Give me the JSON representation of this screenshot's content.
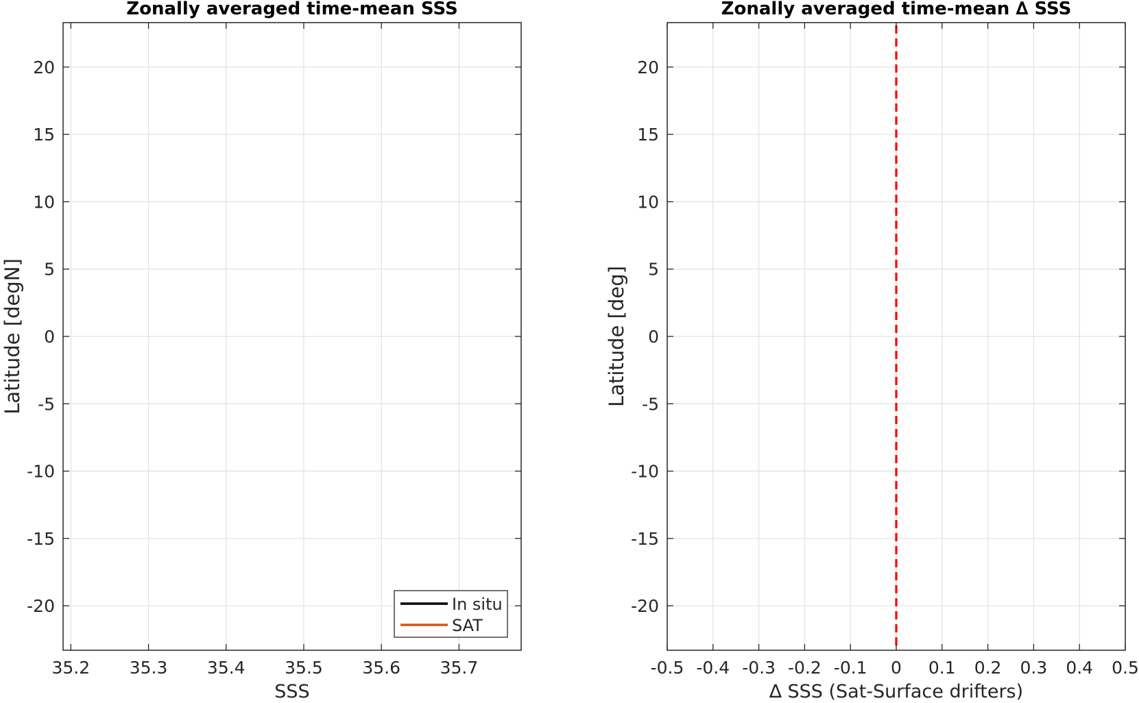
{
  "chart_data": [
    {
      "type": "line",
      "title": "Zonally averaged time-mean SSS",
      "xlabel": "SSS",
      "ylabel": "Latitude [degN]",
      "xlim": [
        35.19,
        35.78
      ],
      "ylim": [
        -23.3,
        23.3
      ],
      "xticks": [
        35.2,
        35.3,
        35.4,
        35.5,
        35.6,
        35.7
      ],
      "xtick_labels": [
        "35.2",
        "35.3",
        "35.4",
        "35.5",
        "35.6",
        "35.7"
      ],
      "yticks": [
        20,
        15,
        10,
        5,
        0,
        -5,
        -10,
        -15,
        -20
      ],
      "ytick_labels": [
        "20",
        "15",
        "10",
        "5",
        "0",
        "-5",
        "-10",
        "-15",
        "-20"
      ],
      "grid": true,
      "legend_position": "bottom-right",
      "series": [
        {
          "name": "In situ",
          "color": "#000000",
          "x": [],
          "y": []
        },
        {
          "name": "SAT",
          "color": "#d95319",
          "x": [],
          "y": []
        }
      ]
    },
    {
      "type": "line",
      "title": "Zonally averaged time-mean ∆ SSS",
      "xlabel": "∆ SSS (Sat-Surface drifters)",
      "ylabel": "Latitude [deg]",
      "xlim": [
        -0.5,
        0.5
      ],
      "ylim": [
        -23.3,
        23.3
      ],
      "xticks": [
        -0.5,
        -0.4,
        -0.3,
        -0.2,
        -0.1,
        0,
        0.1,
        0.2,
        0.3,
        0.4,
        0.5
      ],
      "xtick_labels": [
        "-0.5",
        "-0.4",
        "-0.3",
        "-0.2",
        "-0.1",
        "0",
        "0.1",
        "0.2",
        "0.3",
        "0.4",
        "0.5"
      ],
      "yticks": [
        20,
        15,
        10,
        5,
        0,
        -5,
        -10,
        -15,
        -20
      ],
      "ytick_labels": [
        "20",
        "15",
        "10",
        "5",
        "0",
        "-5",
        "-10",
        "-15",
        "-20"
      ],
      "grid": true,
      "reference_line": {
        "x": 0,
        "style": "dashed",
        "color": "#ff0000"
      },
      "series": []
    }
  ]
}
